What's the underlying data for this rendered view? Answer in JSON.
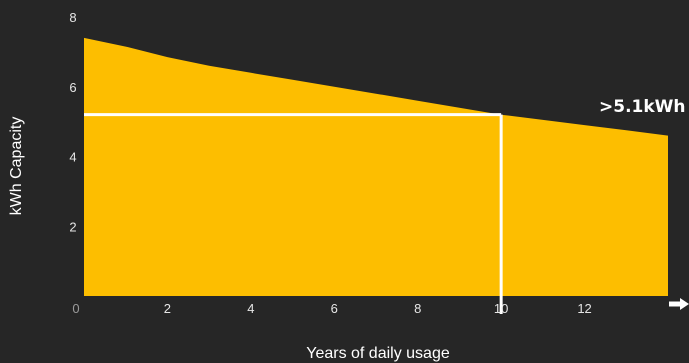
{
  "chart_data": {
    "type": "area",
    "title": "",
    "xlabel": "Years of daily usage",
    "ylabel": "kWh Capacity",
    "origin_label": "0",
    "xlim": [
      0,
      14
    ],
    "ylim": [
      0,
      8
    ],
    "x_ticks": [
      2,
      4,
      6,
      8,
      10,
      12
    ],
    "y_ticks": [
      2,
      4,
      6,
      8
    ],
    "grid": false,
    "legend": "none",
    "series": [
      {
        "x": [
          0,
          1,
          2,
          3,
          4,
          5,
          6,
          7,
          8,
          9,
          10,
          11,
          12,
          13,
          14
        ],
        "values": [
          7.4,
          7.15,
          6.85,
          6.6,
          6.4,
          6.2,
          6.0,
          5.8,
          5.6,
          5.4,
          5.2,
          5.05,
          4.9,
          4.75,
          4.6
        ]
      }
    ],
    "reference": {
      "x": 10,
      "y": 5.2,
      "label": ">5.1kWh"
    },
    "colors": {
      "area": "#fdbe00",
      "reference_line": "#ffffff",
      "background": "#262626"
    }
  }
}
